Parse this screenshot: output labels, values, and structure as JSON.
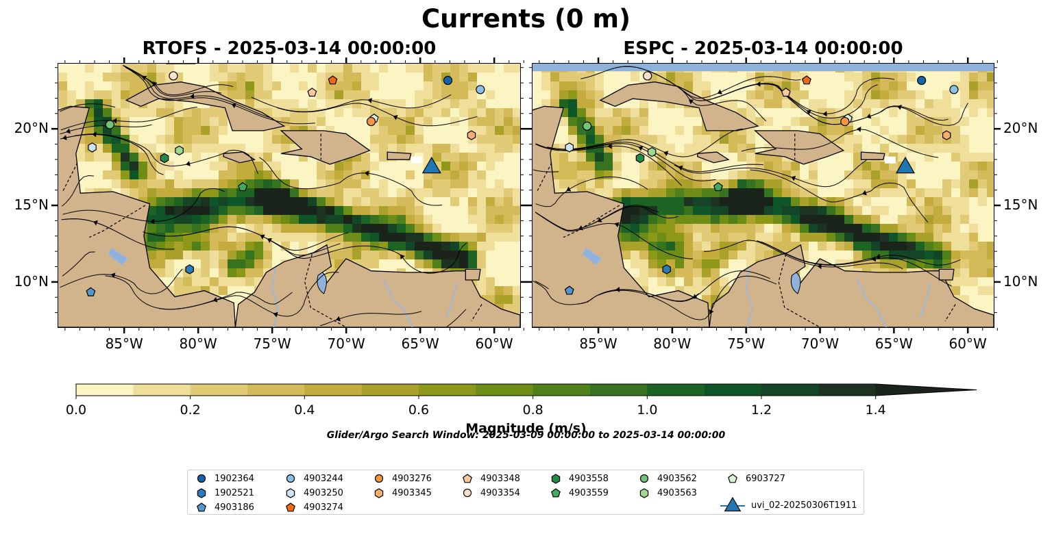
{
  "title": "Currents (0 m)",
  "panels": [
    {
      "id": "rtofs",
      "title": "RTOFS - 2025-03-14 00:00:00"
    },
    {
      "id": "espc",
      "title": "ESPC - 2025-03-14 00:00:00"
    }
  ],
  "map_extent": {
    "lon": [
      -89.5,
      -58.2
    ],
    "lat": [
      7.0,
      24.3
    ]
  },
  "lon_ticks": [
    {
      "value": -85,
      "label": "85°W"
    },
    {
      "value": -80,
      "label": "80°W"
    },
    {
      "value": -75,
      "label": "75°W"
    },
    {
      "value": -70,
      "label": "70°W"
    },
    {
      "value": -65,
      "label": "65°W"
    },
    {
      "value": -60,
      "label": "60°W"
    }
  ],
  "lat_ticks": [
    {
      "value": 20,
      "label": "20°N"
    },
    {
      "value": 15,
      "label": "15°N"
    },
    {
      "value": 10,
      "label": "10°N"
    }
  ],
  "colorbar": {
    "label": "Magnitude (m/s)",
    "min": 0.0,
    "max": 1.5,
    "step": 0.1,
    "ticks": [
      {
        "value": 0.0,
        "label": "0.0"
      },
      {
        "value": 0.2,
        "label": "0.2"
      },
      {
        "value": 0.4,
        "label": "0.4"
      },
      {
        "value": 0.6,
        "label": "0.6"
      },
      {
        "value": 0.8,
        "label": "0.8"
      },
      {
        "value": 1.0,
        "label": "1.0"
      },
      {
        "value": 1.2,
        "label": "1.2"
      },
      {
        "value": 1.4,
        "label": "1.4"
      }
    ],
    "colors": [
      "#fbf5c3",
      "#efdf9b",
      "#e2cb77",
      "#d4ba58",
      "#c3ab3e",
      "#aaa12a",
      "#8d9718",
      "#6e8d17",
      "#508019",
      "#36721f",
      "#1d6424",
      "#0e5628",
      "#134526",
      "#1c3322",
      "#1a241a"
    ],
    "extend": "max"
  },
  "search_window": "Glider/Argo Search Window: 2025-03-09 00:00:00 to 2025-03-14 00:00:00",
  "colors": {
    "land": "#d1b48c",
    "water_body": "#8fb2dd",
    "river": "#9fb8d8",
    "cbar_edge": "#000000"
  },
  "legend": [
    {
      "name": "1902364",
      "marker": "circle",
      "color": "#1764ab"
    },
    {
      "name": "1902521",
      "marker": "hexagon",
      "color": "#2c7bbc"
    },
    {
      "name": "4903186",
      "marker": "pentagon",
      "color": "#5597cc"
    },
    {
      "name": "4903244",
      "marker": "circle",
      "color": "#8dc1e6"
    },
    {
      "name": "4903250",
      "marker": "hexagon",
      "color": "#cfe4f4"
    },
    {
      "name": "4903274",
      "marker": "pentagon",
      "color": "#f06a10"
    },
    {
      "name": "4903276",
      "marker": "circle",
      "color": "#f7963f"
    },
    {
      "name": "4903345",
      "marker": "hexagon",
      "color": "#f8ae6d"
    },
    {
      "name": "4903348",
      "marker": "pentagon",
      "color": "#fcc89c"
    },
    {
      "name": "4903354",
      "marker": "circle",
      "color": "#fde3cc"
    },
    {
      "name": "4903558",
      "marker": "hexagon",
      "color": "#238b45"
    },
    {
      "name": "4903559",
      "marker": "pentagon",
      "color": "#41ab5d"
    },
    {
      "name": "4903562",
      "marker": "circle",
      "color": "#74c476"
    },
    {
      "name": "4903563",
      "marker": "hexagon",
      "color": "#9ed98f"
    },
    {
      "name": "6903727",
      "marker": "pentagon",
      "color": "#d9f3d2"
    },
    {
      "name": "uvi_02-20250306T1911",
      "marker": "triangle-line",
      "color": "#1f77b4"
    }
  ],
  "floats": {
    "rtofs": [
      {
        "id": "4903354",
        "lon": -81.7,
        "lat": 23.5
      },
      {
        "id": "4903274",
        "lon": -70.9,
        "lat": 23.2
      },
      {
        "id": "4903348",
        "lon": -72.3,
        "lat": 22.4
      },
      {
        "id": "1902364",
        "lon": -63.1,
        "lat": 23.2
      },
      {
        "id": "4903244",
        "lon": -60.9,
        "lat": 22.6
      },
      {
        "id": "4903562",
        "lon": -86.0,
        "lat": 20.3
      },
      {
        "id": "6903727",
        "lon": -68.1,
        "lat": 20.7
      },
      {
        "id": "4903276",
        "lon": -68.3,
        "lat": 20.5
      },
      {
        "id": "4903345",
        "lon": -61.5,
        "lat": 19.6
      },
      {
        "id": "4903250",
        "lon": -87.2,
        "lat": 18.8
      },
      {
        "id": "4903563",
        "lon": -81.3,
        "lat": 18.6
      },
      {
        "id": "4903558",
        "lon": -82.3,
        "lat": 18.1
      },
      {
        "id": "4903559",
        "lon": -77.0,
        "lat": 16.2
      },
      {
        "id": "1902521",
        "lon": -80.6,
        "lat": 10.8
      },
      {
        "id": "4903186",
        "lon": -87.3,
        "lat": 9.3
      },
      {
        "id": "uvi_02-20250306T1911",
        "lon": -64.2,
        "lat": 17.6
      }
    ],
    "espc": [
      {
        "id": "4903354",
        "lon": -81.7,
        "lat": 23.5
      },
      {
        "id": "4903274",
        "lon": -70.9,
        "lat": 23.2
      },
      {
        "id": "4903348",
        "lon": -72.3,
        "lat": 22.4
      },
      {
        "id": "1902364",
        "lon": -63.1,
        "lat": 23.2
      },
      {
        "id": "4903244",
        "lon": -60.9,
        "lat": 22.6
      },
      {
        "id": "4903562",
        "lon": -85.8,
        "lat": 20.2
      },
      {
        "id": "6903727",
        "lon": -68.1,
        "lat": 20.7
      },
      {
        "id": "4903276",
        "lon": -68.3,
        "lat": 20.5
      },
      {
        "id": "4903345",
        "lon": -61.4,
        "lat": 19.6
      },
      {
        "id": "4903250",
        "lon": -87.0,
        "lat": 18.8
      },
      {
        "id": "4903563",
        "lon": -81.4,
        "lat": 18.5
      },
      {
        "id": "4903558",
        "lon": -82.2,
        "lat": 18.1
      },
      {
        "id": "4903559",
        "lon": -76.9,
        "lat": 16.2
      },
      {
        "id": "1902521",
        "lon": -80.4,
        "lat": 10.8
      },
      {
        "id": "4903186",
        "lon": -87.0,
        "lat": 9.4
      },
      {
        "id": "uvi_02-20250306T1911",
        "lon": -64.2,
        "lat": 17.6
      }
    ]
  }
}
